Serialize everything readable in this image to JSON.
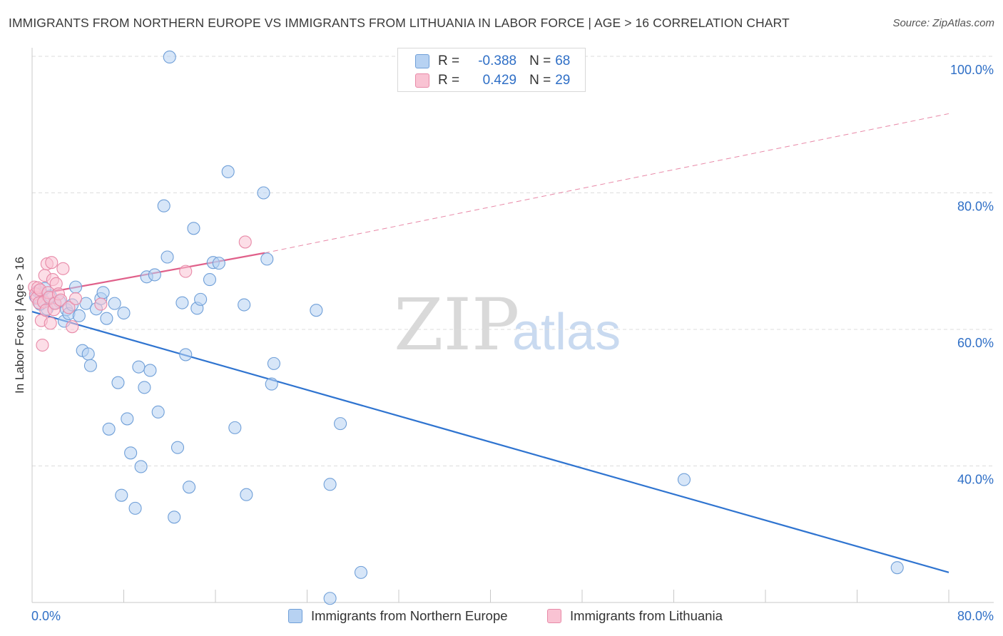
{
  "title": "IMMIGRANTS FROM NORTHERN EUROPE VS IMMIGRANTS FROM LITHUANIA IN LABOR FORCE | AGE > 16 CORRELATION CHART",
  "source": "Source: ZipAtlas.com",
  "watermark": {
    "zip": "ZIP",
    "atlas": "atlas"
  },
  "legend_top": {
    "r_label": "R =",
    "n_label": "N =",
    "rows": [
      {
        "r": "-0.388",
        "n": "68"
      },
      {
        "r": "0.429",
        "n": "29"
      }
    ]
  },
  "colors": {
    "blue_fill": "#b7d2f2",
    "blue_stroke": "#6f9fd8",
    "blue_line": "#2f74d0",
    "pink_fill": "#f9c3d3",
    "pink_stroke": "#e88aa8",
    "pink_line": "#e0608a",
    "tick_text": "#2f6fc6"
  },
  "chart_data": {
    "type": "scatter",
    "title": "IMMIGRANTS FROM NORTHERN EUROPE VS IMMIGRANTS FROM LITHUANIA IN LABOR FORCE | AGE > 16 CORRELATION CHART",
    "xlabel": "",
    "ylabel": "In Labor Force | Age > 16",
    "xlim": [
      0,
      80
    ],
    "ylim": [
      20,
      102
    ],
    "x_tick_labels": [
      {
        "value": 0,
        "label": "0.0%"
      },
      {
        "value": 80,
        "label": "80.0%"
      }
    ],
    "y_tick_labels": [
      {
        "value": 40,
        "label": "40.0%"
      },
      {
        "value": 60,
        "label": "60.0%"
      },
      {
        "value": 80,
        "label": "80.0%"
      },
      {
        "value": 100,
        "label": "100.0%"
      }
    ],
    "grid": true,
    "legend_position": "bottom",
    "series": [
      {
        "name": "Immigrants from Northern Europe",
        "color": "#b7d2f2",
        "points": [
          [
            0.3,
            64.8
          ],
          [
            0.5,
            65.6
          ],
          [
            0.8,
            65.2
          ],
          [
            1.0,
            64.2
          ],
          [
            1.3,
            63.0
          ],
          [
            1.6,
            64.9
          ],
          [
            2.0,
            63.9
          ],
          [
            2.4,
            64.1
          ],
          [
            2.8,
            61.2
          ],
          [
            3.0,
            62.9
          ],
          [
            3.2,
            62.3
          ],
          [
            3.5,
            63.6
          ],
          [
            3.8,
            66.2
          ],
          [
            4.1,
            62.0
          ],
          [
            4.4,
            56.9
          ],
          [
            4.7,
            63.8
          ],
          [
            4.9,
            56.4
          ],
          [
            5.1,
            54.7
          ],
          [
            5.6,
            63.0
          ],
          [
            6.0,
            64.5
          ],
          [
            6.2,
            65.4
          ],
          [
            6.5,
            61.6
          ],
          [
            6.7,
            45.4
          ],
          [
            7.2,
            63.8
          ],
          [
            7.5,
            52.2
          ],
          [
            7.8,
            35.7
          ],
          [
            8.0,
            62.4
          ],
          [
            8.3,
            46.9
          ],
          [
            8.6,
            41.9
          ],
          [
            9.0,
            33.8
          ],
          [
            9.3,
            54.5
          ],
          [
            9.5,
            39.9
          ],
          [
            9.8,
            51.5
          ],
          [
            10.0,
            67.7
          ],
          [
            10.3,
            54.0
          ],
          [
            10.7,
            68.0
          ],
          [
            11.0,
            47.9
          ],
          [
            11.5,
            78.1
          ],
          [
            11.8,
            70.6
          ],
          [
            12.0,
            99.9
          ],
          [
            12.4,
            32.5
          ],
          [
            12.7,
            42.7
          ],
          [
            13.1,
            63.9
          ],
          [
            13.4,
            56.3
          ],
          [
            13.7,
            36.9
          ],
          [
            14.1,
            74.8
          ],
          [
            14.4,
            63.1
          ],
          [
            14.7,
            64.4
          ],
          [
            15.5,
            67.3
          ],
          [
            15.8,
            69.8
          ],
          [
            16.3,
            69.7
          ],
          [
            17.1,
            83.1
          ],
          [
            17.7,
            45.6
          ],
          [
            18.5,
            63.6
          ],
          [
            18.7,
            35.8
          ],
          [
            20.2,
            80.0
          ],
          [
            20.5,
            70.3
          ],
          [
            20.9,
            52.0
          ],
          [
            21.1,
            55.0
          ],
          [
            24.8,
            62.8
          ],
          [
            26.0,
            37.3
          ],
          [
            26.0,
            20.6
          ],
          [
            26.9,
            46.2
          ],
          [
            28.7,
            24.4
          ],
          [
            56.9,
            38.0
          ],
          [
            75.5,
            25.1
          ],
          [
            0.7,
            63.7
          ],
          [
            1.1,
            66.0
          ]
        ]
      },
      {
        "name": "Immigrants from Lithuania",
        "color": "#f9c3d3",
        "points": [
          [
            0.2,
            66.2
          ],
          [
            0.3,
            65.2
          ],
          [
            0.4,
            64.6
          ],
          [
            0.5,
            66.1
          ],
          [
            0.6,
            63.9
          ],
          [
            0.7,
            65.8
          ],
          [
            0.8,
            61.3
          ],
          [
            0.9,
            57.7
          ],
          [
            1.0,
            64.0
          ],
          [
            1.1,
            67.9
          ],
          [
            1.2,
            62.8
          ],
          [
            1.3,
            69.6
          ],
          [
            1.4,
            65.4
          ],
          [
            1.5,
            64.7
          ],
          [
            1.6,
            60.9
          ],
          [
            1.7,
            69.8
          ],
          [
            1.8,
            67.3
          ],
          [
            1.9,
            62.9
          ],
          [
            2.0,
            63.8
          ],
          [
            2.1,
            66.7
          ],
          [
            2.3,
            65.2
          ],
          [
            2.5,
            64.3
          ],
          [
            2.7,
            68.9
          ],
          [
            3.2,
            63.2
          ],
          [
            3.5,
            60.4
          ],
          [
            3.8,
            64.5
          ],
          [
            6.0,
            63.7
          ],
          [
            13.4,
            68.5
          ],
          [
            18.6,
            72.8
          ]
        ]
      }
    ],
    "trend_lines": [
      {
        "series": "Immigrants from Northern Europe",
        "x": [
          0,
          80
        ],
        "y": [
          62.6,
          24.4
        ],
        "style": "solid"
      },
      {
        "series": "Immigrants from Lithuania",
        "x": [
          0,
          20.3
        ],
        "y": [
          65.0,
          71.2
        ],
        "style": "solid"
      },
      {
        "series": "Immigrants from Lithuania",
        "x": [
          20.3,
          80
        ],
        "y": [
          71.2,
          91.6
        ],
        "style": "dashed"
      }
    ]
  }
}
